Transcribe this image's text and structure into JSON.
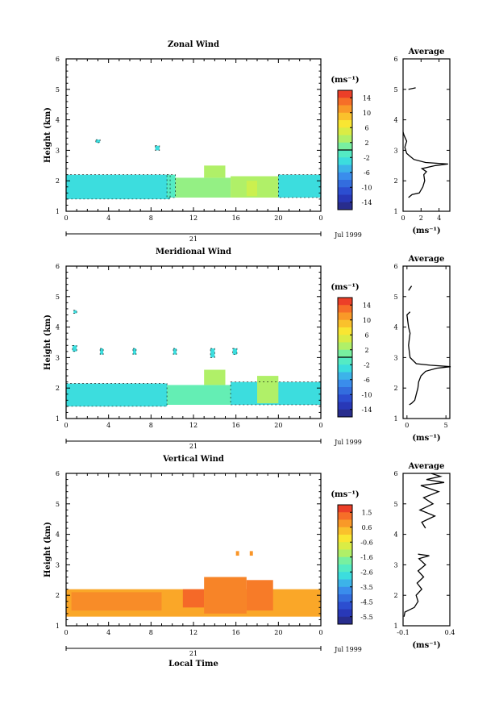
{
  "chart_data": [
    {
      "type": "heatmap",
      "title": "Zonal Wind",
      "xlabel": "",
      "ylabel": "Height (km)",
      "xlim": [
        0,
        24
      ],
      "ylim": [
        1,
        6
      ],
      "xticks": [
        "0",
        "4",
        "8",
        "12",
        "16",
        "20",
        "0"
      ],
      "yticks": [
        "1",
        "2",
        "3",
        "4",
        "5",
        "6"
      ],
      "date_day": "21",
      "date_label": "Jul 1999",
      "colorbar": {
        "unit": "(ms⁻¹)",
        "ticks": [
          "14",
          "10",
          "6",
          "2",
          "-2",
          "-6",
          "-10",
          "-14"
        ],
        "range": [
          -16,
          16
        ],
        "contour": 0
      },
      "cells": [
        {
          "t0": 0.0,
          "t1": 9.8,
          "h0": 1.4,
          "h1": 2.2,
          "v": -3
        },
        {
          "t0": 2.8,
          "t1": 3.2,
          "h0": 3.25,
          "h1": 3.35,
          "v": -3
        },
        {
          "t0": 8.4,
          "t1": 8.8,
          "h0": 3.0,
          "h1": 3.15,
          "v": -3
        },
        {
          "t0": 9.5,
          "t1": 10.3,
          "h0": 1.45,
          "h1": 2.2,
          "v": -1
        },
        {
          "t0": 10.3,
          "t1": 15.5,
          "h0": 1.45,
          "h1": 2.1,
          "v": 2
        },
        {
          "t0": 13.0,
          "t1": 15.0,
          "h0": 2.1,
          "h1": 2.5,
          "v": 3
        },
        {
          "t0": 15.5,
          "t1": 20.0,
          "h0": 1.45,
          "h1": 2.15,
          "v": 3
        },
        {
          "t0": 17.0,
          "t1": 18.0,
          "h0": 1.5,
          "h1": 2.0,
          "v": 4
        },
        {
          "t0": 20.0,
          "t1": 24.0,
          "h0": 1.45,
          "h1": 2.2,
          "v": -3
        }
      ],
      "profile": {
        "xlabel": "(ms⁻¹)",
        "title": "Average",
        "xlim": [
          0,
          5.2
        ],
        "xticks": [
          "0",
          "2",
          "4"
        ],
        "yticks": [
          "1",
          "2",
          "3",
          "4",
          "5",
          "6"
        ],
        "x": [
          0.6,
          0.8,
          1.0,
          1.8,
          2.2,
          2.4,
          2.3,
          2.6,
          2.1,
          3.6,
          5.0,
          2.5,
          1.2,
          0.8,
          0.4,
          0.3,
          0.2,
          0.4,
          0.1,
          0.0,
          0.6,
          1.4
        ],
        "y": [
          1.45,
          1.5,
          1.55,
          1.6,
          1.8,
          2.0,
          2.2,
          2.3,
          2.4,
          2.5,
          2.55,
          2.6,
          2.7,
          2.8,
          2.9,
          3.0,
          3.1,
          3.3,
          3.5,
          3.6,
          5.0,
          5.05
        ]
      }
    },
    {
      "type": "heatmap",
      "title": "Meridional Wind",
      "xlabel": "",
      "ylabel": "Height (km)",
      "xlim": [
        0,
        24
      ],
      "ylim": [
        1,
        6
      ],
      "xticks": [
        "0",
        "4",
        "8",
        "12",
        "16",
        "20",
        "0"
      ],
      "yticks": [
        "1",
        "2",
        "3",
        "4",
        "5",
        "6"
      ],
      "date_day": "21",
      "date_label": "Jul 1999",
      "colorbar": {
        "unit": "(ms⁻¹)",
        "ticks": [
          "14",
          "10",
          "6",
          "2",
          "-2",
          "-6",
          "-10",
          "-14"
        ],
        "range": [
          -16,
          16
        ],
        "contour": 0
      },
      "cells": [
        {
          "t0": 0.0,
          "t1": 9.5,
          "h0": 1.4,
          "h1": 2.15,
          "v": -3
        },
        {
          "t0": 0.7,
          "t1": 1.0,
          "h0": 4.45,
          "h1": 4.55,
          "v": -3
        },
        {
          "t0": 0.6,
          "t1": 1.0,
          "h0": 3.2,
          "h1": 3.4,
          "v": -3
        },
        {
          "t0": 3.2,
          "t1": 3.5,
          "h0": 3.1,
          "h1": 3.3,
          "v": -3
        },
        {
          "t0": 6.3,
          "t1": 6.6,
          "h0": 3.1,
          "h1": 3.3,
          "v": -3
        },
        {
          "t0": 10.1,
          "t1": 10.4,
          "h0": 3.1,
          "h1": 3.3,
          "v": -3
        },
        {
          "t0": 13.6,
          "t1": 14.0,
          "h0": 3.0,
          "h1": 3.3,
          "v": -3
        },
        {
          "t0": 15.7,
          "t1": 16.1,
          "h0": 3.1,
          "h1": 3.3,
          "v": -3
        },
        {
          "t0": 9.5,
          "t1": 15.5,
          "h0": 1.45,
          "h1": 2.1,
          "v": 0
        },
        {
          "t0": 13.0,
          "t1": 15.0,
          "h0": 2.1,
          "h1": 2.6,
          "v": 3
        },
        {
          "t0": 15.5,
          "t1": 24.0,
          "h0": 1.45,
          "h1": 2.2,
          "v": -3
        },
        {
          "t0": 18.0,
          "t1": 20.0,
          "h0": 1.5,
          "h1": 2.4,
          "v": 3
        }
      ],
      "profile": {
        "xlabel": "(ms⁻¹)",
        "title": "Average",
        "xlim": [
          -0.5,
          5.5
        ],
        "xticks": [
          "0",
          "5"
        ],
        "yticks": [
          "1",
          "2",
          "3",
          "4",
          "5",
          "6"
        ],
        "x": [
          0.3,
          0.6,
          1.0,
          1.2,
          1.4,
          1.5,
          1.8,
          2.4,
          3.8,
          5.6,
          3.0,
          1.2,
          0.4,
          0.3,
          0.2,
          0.3,
          0.4,
          0.2,
          0.0,
          0.4,
          0.2,
          0.6
        ],
        "y": [
          1.45,
          1.5,
          1.6,
          1.8,
          2.0,
          2.2,
          2.4,
          2.55,
          2.65,
          2.7,
          2.75,
          2.8,
          3.0,
          3.2,
          3.4,
          3.6,
          3.8,
          4.0,
          4.4,
          4.5,
          5.2,
          5.35
        ]
      }
    },
    {
      "type": "heatmap",
      "title": "Vertical Wind",
      "xlabel": "Local Time",
      "ylabel": "Height (km)",
      "xlim": [
        0,
        24
      ],
      "ylim": [
        1,
        6
      ],
      "xticks": [
        "0",
        "4",
        "8",
        "12",
        "16",
        "20",
        "0"
      ],
      "yticks": [
        "1",
        "2",
        "3",
        "4",
        "5",
        "6"
      ],
      "date_day": "21",
      "date_label": "Jul 1999",
      "colorbar": {
        "unit": "(ms⁻¹)",
        "ticks": [
          "1.5",
          "0.6",
          "-0.6",
          "-1.6",
          "-2.6",
          "-3.5",
          "-4.5",
          "-5.5"
        ],
        "range": [
          -6.0,
          2.0
        ],
        "contour": null
      },
      "cells": [
        {
          "t0": 0.0,
          "t1": 24.0,
          "h0": 1.3,
          "h1": 2.2,
          "v": 0.6
        },
        {
          "t0": 0.5,
          "t1": 9.0,
          "h0": 1.5,
          "h1": 2.1,
          "v": 0.9
        },
        {
          "t0": 11.0,
          "t1": 13.0,
          "h0": 1.6,
          "h1": 2.2,
          "v": 1.3
        },
        {
          "t0": 13.0,
          "t1": 17.0,
          "h0": 1.4,
          "h1": 2.6,
          "v": 1.0
        },
        {
          "t0": 17.0,
          "t1": 19.5,
          "h0": 1.5,
          "h1": 2.5,
          "v": 1.1
        },
        {
          "t0": 16.0,
          "t1": 16.3,
          "h0": 3.3,
          "h1": 3.45,
          "v": 0.8
        },
        {
          "t0": 17.3,
          "t1": 17.6,
          "h0": 3.3,
          "h1": 3.45,
          "v": 0.8
        }
      ],
      "profile": {
        "xlabel": "(ms⁻¹)",
        "title": "Average",
        "xlim": [
          -0.1,
          0.4
        ],
        "xticks": [
          "-0.1",
          "0.4"
        ],
        "yticks": [
          "1",
          "2",
          "3",
          "4",
          "5",
          "6"
        ],
        "x": [
          -0.09,
          -0.08,
          0.02,
          0.06,
          0.04,
          0.1,
          0.05,
          0.12,
          0.06,
          0.14,
          0.07,
          0.18,
          0.06,
          0.14,
          0.1,
          0.24,
          0.08,
          0.22,
          0.12,
          0.28,
          0.09,
          0.34,
          0.15,
          0.3,
          0.2
        ],
        "y": [
          1.3,
          1.45,
          1.6,
          1.8,
          2.0,
          2.2,
          2.4,
          2.6,
          2.8,
          3.0,
          3.2,
          3.3,
          3.35,
          4.2,
          4.4,
          4.6,
          4.8,
          5.0,
          5.2,
          5.4,
          5.6,
          5.7,
          5.8,
          5.9,
          6.0
        ]
      }
    }
  ]
}
